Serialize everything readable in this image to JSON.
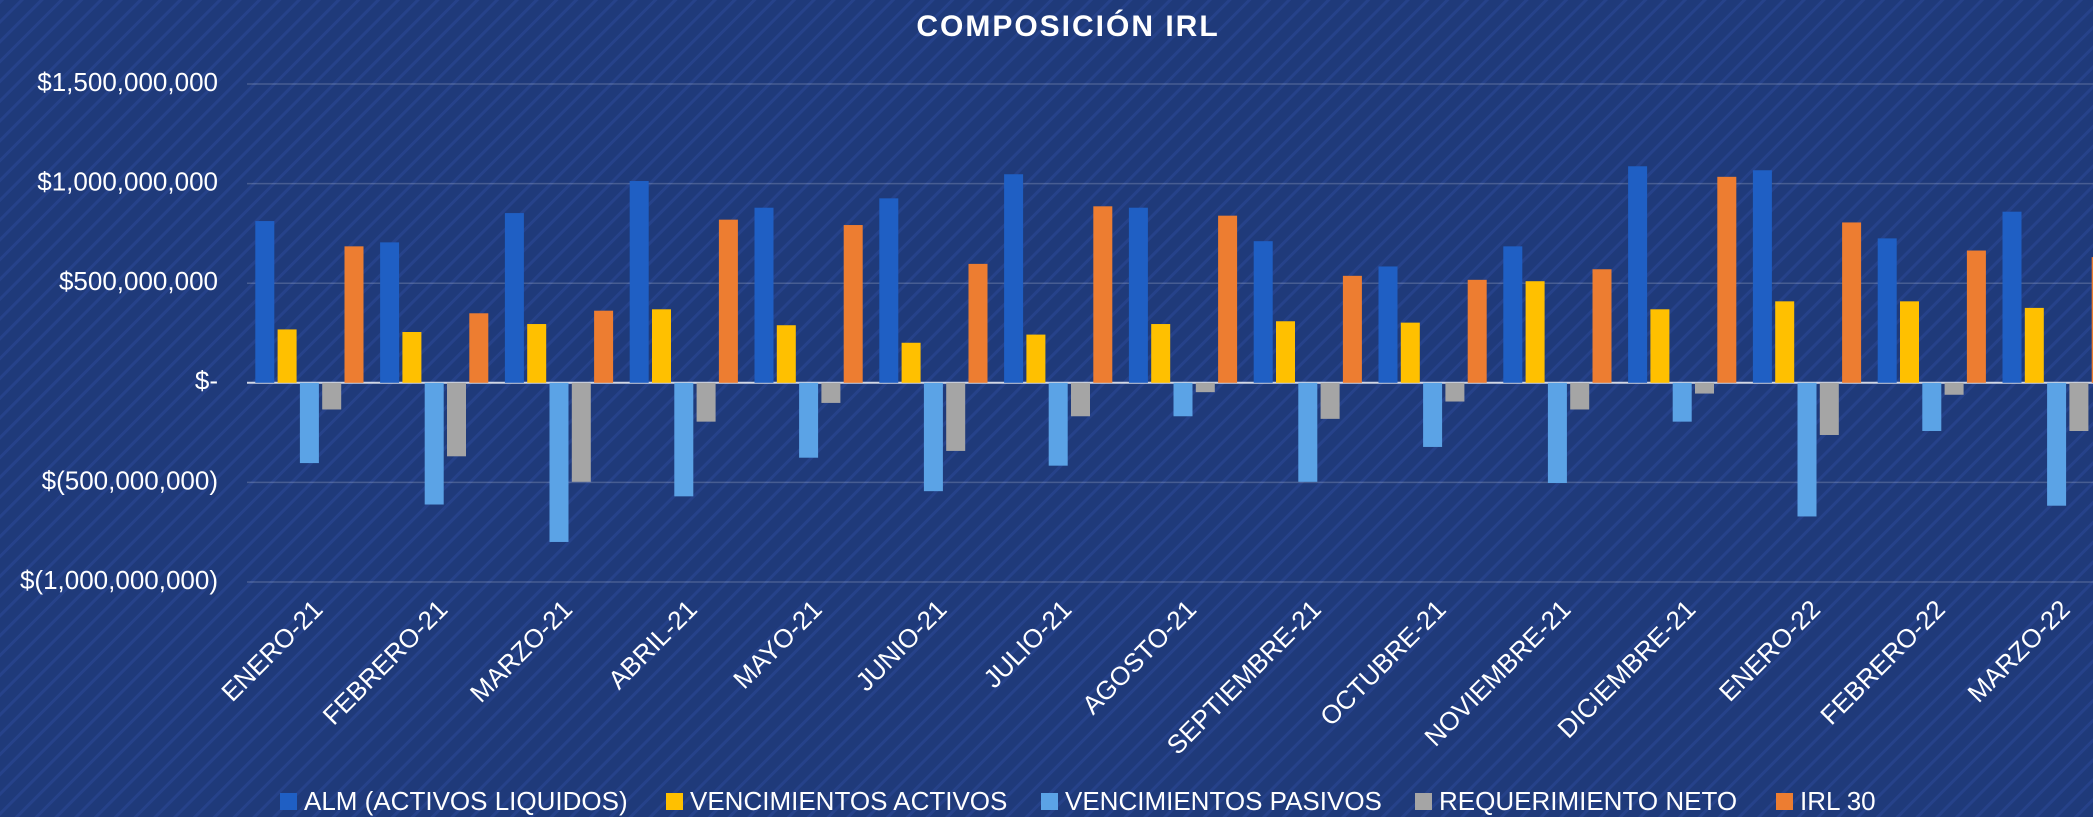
{
  "chart_data": {
    "type": "bar",
    "title": "COMPOSICIÓN IRL",
    "categories": [
      "ENERO-21",
      "FEBRERO-21",
      "MARZO-21",
      "ABRIL-21",
      "MAYO-21",
      "JUNIO-21",
      "JULIO-21",
      "AGOSTO-21",
      "SEPTIEMBRE-21",
      "OCTUBRE-21",
      "NOVIEMBRE-21",
      "DICIEMBRE-21",
      "ENERO-22",
      "FEBRERO-22",
      "MARZO-22"
    ],
    "series": [
      {
        "name": "ALM (ACTIVOS LIQUIDOS)",
        "color": "#1f5fc4",
        "values": [
          812000000,
          705000000,
          852000000,
          1013000000,
          879000000,
          926000000,
          1047000000,
          879000000,
          711000000,
          584000000,
          685000000,
          1087000000,
          1067000000,
          725000000,
          859000000
        ]
      },
      {
        "name": "VENCIMIENTOS ACTIVOS",
        "color": "#ffc000",
        "values": [
          268000000,
          255000000,
          295000000,
          369000000,
          289000000,
          201000000,
          242000000,
          295000000,
          309000000,
          302000000,
          510000000,
          369000000,
          409000000,
          409000000,
          376000000
        ]
      },
      {
        "name": "VENCIMIENTOS PASIVOS",
        "color": "#5ba3e6",
        "values": [
          -403000000,
          -611000000,
          -799000000,
          -570000000,
          -376000000,
          -544000000,
          -416000000,
          -168000000,
          -497000000,
          -322000000,
          -503000000,
          -195000000,
          -671000000,
          -242000000,
          -617000000
        ]
      },
      {
        "name": "REQUERIMIENTO NETO",
        "color": "#a5a5a5",
        "values": [
          -134000000,
          -369000000,
          -497000000,
          -195000000,
          -101000000,
          -342000000,
          -168000000,
          -47000000,
          -181000000,
          -94000000,
          -134000000,
          -54000000,
          -262000000,
          -60000000,
          -242000000
        ]
      },
      {
        "name": "IRL 30",
        "color": "#ed7d31",
        "values": [
          685000000,
          349000000,
          362000000,
          819000000,
          792000000,
          597000000,
          886000000,
          839000000,
          537000000,
          517000000,
          570000000,
          1034000000,
          805000000,
          664000000,
          631000000
        ]
      }
    ],
    "ylim": [
      -1000000000,
      1500000000
    ],
    "yticks": [
      {
        "value": -1000000000,
        "label": "$(1,000,000,000)"
      },
      {
        "value": -500000000,
        "label": "$(500,000,000)"
      },
      {
        "value": 0,
        "label": "$-"
      },
      {
        "value": 500000000,
        "label": "$500,000,000"
      },
      {
        "value": 1000000000,
        "label": "$1,000,000,000"
      },
      {
        "value": 1500000000,
        "label": "$1,500,000,000"
      }
    ],
    "grid": true,
    "legend": "bottom"
  }
}
